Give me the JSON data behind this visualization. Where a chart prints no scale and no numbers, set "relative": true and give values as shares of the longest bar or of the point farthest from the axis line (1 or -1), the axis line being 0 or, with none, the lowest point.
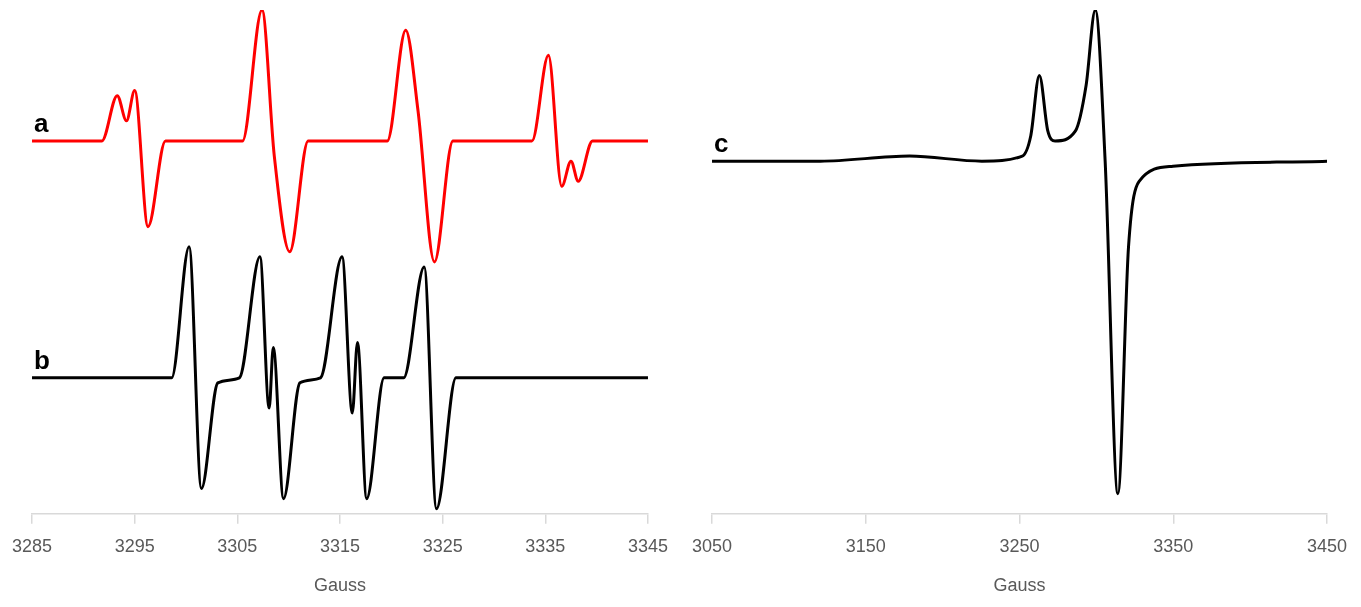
{
  "chart_data": [
    {
      "type": "line",
      "xlabel": "Gauss",
      "relative": true,
      "xlim": [
        3285,
        3345
      ],
      "xticks": [
        3285,
        3295,
        3305,
        3315,
        3325,
        3335,
        3345
      ],
      "grid": false,
      "legend": false,
      "marker": "none",
      "line_style": "solid",
      "series": [
        {
          "name": "a",
          "color": "#ff0000",
          "x": [
            3285,
            3291.8,
            3293.3,
            3294.2,
            3295.0,
            3296.3,
            3298.0,
            3305.5,
            3307.4,
            3308.6,
            3310.1,
            3311.9,
            3319.6,
            3321.4,
            3322.6,
            3324.2,
            3326.0,
            3333.7,
            3335.3,
            3336.6,
            3337.5,
            3338.2,
            3339.6,
            3345
          ],
          "values": [
            0.74,
            0.74,
            0.83,
            0.78,
            0.84,
            0.57,
            0.74,
            0.74,
            1.0,
            0.71,
            0.52,
            0.74,
            0.74,
            0.96,
            0.8,
            0.5,
            0.74,
            0.74,
            0.91,
            0.65,
            0.7,
            0.66,
            0.74,
            0.74
          ]
        },
        {
          "name": "b",
          "color": "#000000",
          "x": [
            3285,
            3298.6,
            3300.3,
            3301.5,
            3303.1,
            3305.2,
            3307.2,
            3308.1,
            3308.5,
            3309.5,
            3311.1,
            3313.1,
            3315.2,
            3316.2,
            3316.7,
            3317.6,
            3319.3,
            3321.2,
            3323.2,
            3324.4,
            3326.3,
            3345
          ],
          "values": [
            0.27,
            0.27,
            0.53,
            0.05,
            0.26,
            0.27,
            0.51,
            0.21,
            0.33,
            0.03,
            0.26,
            0.27,
            0.51,
            0.2,
            0.34,
            0.03,
            0.27,
            0.27,
            0.49,
            0.01,
            0.27,
            0.27
          ]
        }
      ]
    },
    {
      "type": "line",
      "xlabel": "Gauss",
      "relative": true,
      "xlim": [
        3050,
        3450
      ],
      "xticks": [
        3050,
        3150,
        3250,
        3350,
        3450
      ],
      "grid": false,
      "legend": false,
      "marker": "none",
      "line_style": "solid",
      "series": [
        {
          "name": "c",
          "color": "#000000",
          "x": [
            3050,
            3120.5,
            3178.5,
            3225.5,
            3251.8,
            3257.3,
            3262.9,
            3268.4,
            3273.1,
            3286.4,
            3293.3,
            3299.3,
            3305.7,
            3314.0,
            3320.9,
            3327.8,
            3349.9,
            3450
          ],
          "values": [
            0.7,
            0.7,
            0.71,
            0.7,
            0.71,
            0.75,
            0.87,
            0.76,
            0.74,
            0.76,
            0.85,
            1.0,
            0.7,
            0.04,
            0.53,
            0.66,
            0.69,
            0.7
          ]
        }
      ]
    }
  ]
}
